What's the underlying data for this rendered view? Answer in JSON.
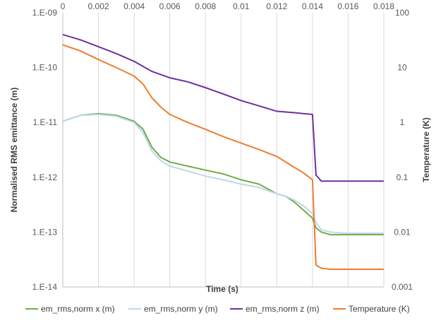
{
  "chart_data": {
    "type": "line",
    "xlabel": "Time (s)",
    "ylabel": "Normalised RMS emittance (m)",
    "y2label": "Temperature (K)",
    "xlim": [
      0,
      0.018
    ],
    "ylim": [
      1e-14,
      1e-09
    ],
    "y2lim": [
      0.001,
      100
    ],
    "yscale": "log",
    "y2scale": "log",
    "grid": "vertical",
    "legend": "bottom",
    "x_ticks": [
      "0",
      "0.002",
      "0.004",
      "0.006",
      "0.008",
      "0.01",
      "0.012",
      "0.014",
      "0.016",
      "0.018"
    ],
    "y_ticks": [
      "1.E-14",
      "1.E-13",
      "1.E-12",
      "1.E-11",
      "1.E-10",
      "1.E-09"
    ],
    "y2_ticks": [
      "0.001",
      "0.01",
      "0.1",
      "1",
      "10",
      "100"
    ],
    "series": [
      {
        "name": "em_rms,norm x (m)",
        "color": "#70ad47",
        "axis": "left",
        "x": [
          0,
          0.001,
          0.002,
          0.003,
          0.004,
          0.0045,
          0.005,
          0.0055,
          0.006,
          0.007,
          0.008,
          0.009,
          0.01,
          0.011,
          0.012,
          0.0125,
          0.013,
          0.0135,
          0.014,
          0.0142,
          0.0145,
          0.015,
          0.016,
          0.017,
          0.018
        ],
        "y": [
          1.05e-11,
          1.35e-11,
          1.45e-11,
          1.35e-11,
          1.05e-11,
          7.5e-12,
          3.5e-12,
          2.3e-12,
          1.9e-12,
          1.6e-12,
          1.35e-12,
          1.15e-12,
          9e-13,
          7.5e-13,
          5e-13,
          4.5e-13,
          3.5e-13,
          2.5e-13,
          1.8e-13,
          1.2e-13,
          1e-13,
          9e-14,
          9e-14,
          9e-14,
          9e-14
        ]
      },
      {
        "name": "em_rms,norm y (m)",
        "color": "#bdd7ee",
        "axis": "left",
        "x": [
          0,
          0.001,
          0.002,
          0.003,
          0.004,
          0.0045,
          0.005,
          0.0055,
          0.006,
          0.007,
          0.008,
          0.009,
          0.01,
          0.011,
          0.012,
          0.0125,
          0.013,
          0.0135,
          0.014,
          0.0142,
          0.0145,
          0.015,
          0.016,
          0.017,
          0.018
        ],
        "y": [
          1.05e-11,
          1.35e-11,
          1.4e-11,
          1.3e-11,
          1e-11,
          6.5e-12,
          3e-12,
          2e-12,
          1.6e-12,
          1.3e-12,
          1.05e-12,
          9e-13,
          7.5e-13,
          6.5e-13,
          5e-13,
          4.5e-13,
          3.8e-13,
          3e-13,
          2.2e-13,
          1.5e-13,
          1.1e-13,
          1e-13,
          9.5e-14,
          9.5e-14,
          9.5e-14
        ]
      },
      {
        "name": "em_rms,norm z (m)",
        "color": "#7030a0",
        "axis": "left",
        "x": [
          0,
          0.001,
          0.002,
          0.003,
          0.004,
          0.005,
          0.006,
          0.007,
          0.008,
          0.009,
          0.01,
          0.011,
          0.012,
          0.013,
          0.0135,
          0.014,
          0.0142,
          0.0145,
          0.015,
          0.016,
          0.017,
          0.018
        ],
        "y": [
          4e-10,
          3.2e-10,
          2.4e-10,
          1.8e-10,
          1.3e-10,
          8.5e-11,
          6.5e-11,
          5.5e-11,
          4.3e-11,
          3.3e-11,
          2.5e-11,
          2e-11,
          1.6e-11,
          1.5e-11,
          1.45e-11,
          1.4e-11,
          1.1e-12,
          8.5e-13,
          8.5e-13,
          8.5e-13,
          8.5e-13,
          8.5e-13
        ]
      },
      {
        "name": "Temperature (K)",
        "color": "#ed7d31",
        "axis": "right",
        "x": [
          0,
          0.001,
          0.002,
          0.003,
          0.004,
          0.0045,
          0.005,
          0.0055,
          0.006,
          0.007,
          0.008,
          0.009,
          0.01,
          0.011,
          0.012,
          0.013,
          0.0135,
          0.014,
          0.0142,
          0.0145,
          0.015,
          0.016,
          0.017,
          0.018
        ],
        "y": [
          26,
          20,
          14,
          10,
          7,
          5,
          2.8,
          1.9,
          1.4,
          1.0,
          0.75,
          0.55,
          0.42,
          0.32,
          0.24,
          0.15,
          0.12,
          0.09,
          0.0025,
          0.0022,
          0.0021,
          0.0021,
          0.0021,
          0.0021
        ]
      }
    ]
  }
}
